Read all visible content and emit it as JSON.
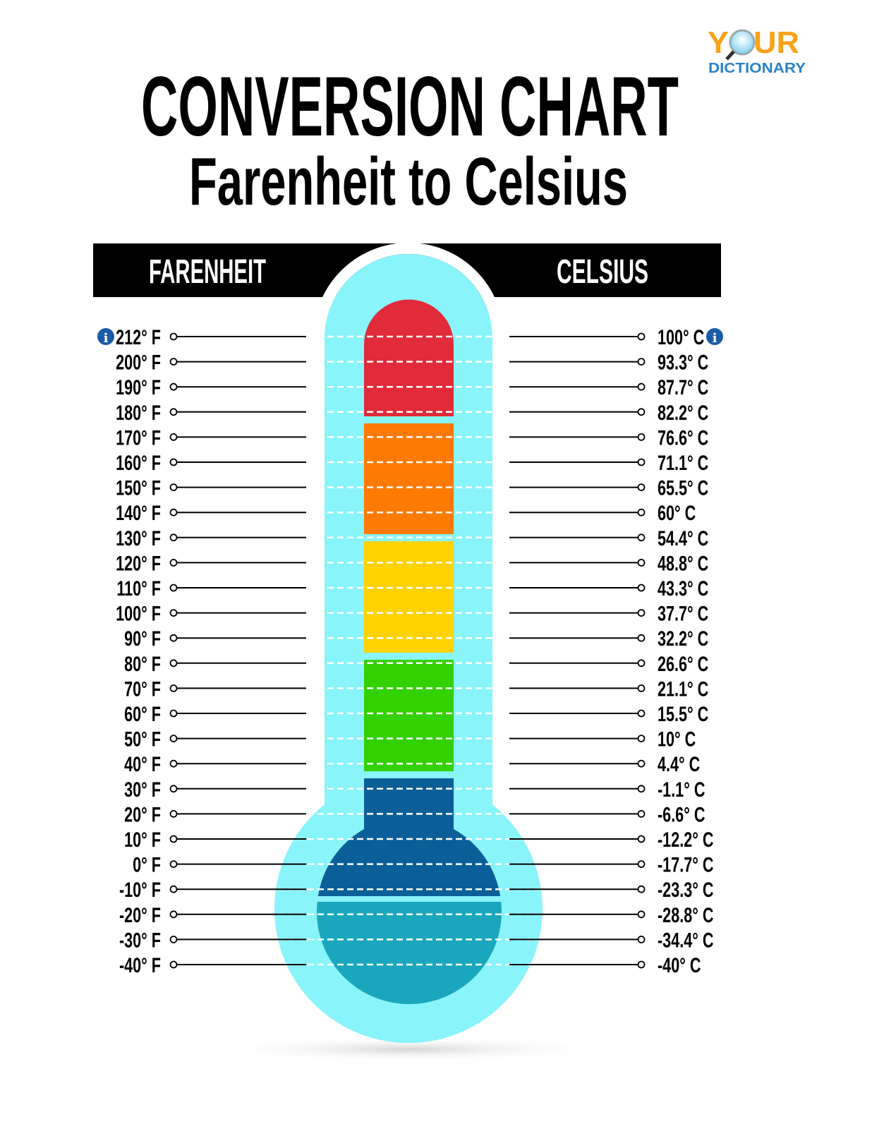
{
  "logo": {
    "top": "YOUR",
    "bottom": "DICTIONARY",
    "colors": {
      "orange": "#F7A21B",
      "blue": "#2A83C6"
    }
  },
  "title": "CONVERSION CHART",
  "subtitle": "Farenheit to Celsius",
  "header": {
    "left": "FARENHEIT",
    "right": "CELSIUS"
  },
  "info_icon": "info-icon",
  "colors": {
    "tube": "#8AF4FB",
    "red": "#E12A3A",
    "orange": "#FF7A00",
    "yellow": "#FFD200",
    "green": "#33D100",
    "dark_blue": "#0B5F99",
    "teal": "#1AA7BE",
    "header_bg": "#000000"
  },
  "rows": [
    {
      "f": "212° F",
      "c": "100° C"
    },
    {
      "f": "200° F",
      "c": "93.3° C"
    },
    {
      "f": "190° F",
      "c": "87.7° C"
    },
    {
      "f": "180° F",
      "c": "82.2° C"
    },
    {
      "f": "170° F",
      "c": "76.6° C"
    },
    {
      "f": "160° F",
      "c": "71.1° C"
    },
    {
      "f": "150° F",
      "c": "65.5° C"
    },
    {
      "f": "140° F",
      "c": "60° C"
    },
    {
      "f": "130° F",
      "c": "54.4° C"
    },
    {
      "f": "120° F",
      "c": "48.8° C"
    },
    {
      "f": "110° F",
      "c": "43.3° C"
    },
    {
      "f": "100° F",
      "c": "37.7° C"
    },
    {
      "f": "90° F",
      "c": "32.2° C"
    },
    {
      "f": "80° F",
      "c": "26.6° C"
    },
    {
      "f": "70° F",
      "c": "21.1° C"
    },
    {
      "f": "60° F",
      "c": "15.5° C"
    },
    {
      "f": "50° F",
      "c": "10° C"
    },
    {
      "f": "40° F",
      "c": "4.4° C"
    },
    {
      "f": "30° F",
      "c": "-1.1° C"
    },
    {
      "f": "20° F",
      "c": "-6.6° C"
    },
    {
      "f": "10° F",
      "c": "-12.2° C"
    },
    {
      "f": "0° F",
      "c": "-17.7° C"
    },
    {
      "f": "-10° F",
      "c": "-23.3° C"
    },
    {
      "f": "-20° F",
      "c": "-28.8° C"
    },
    {
      "f": "-30° F",
      "c": "-34.4° C"
    },
    {
      "f": "-40° F",
      "c": "-40° C"
    }
  ]
}
